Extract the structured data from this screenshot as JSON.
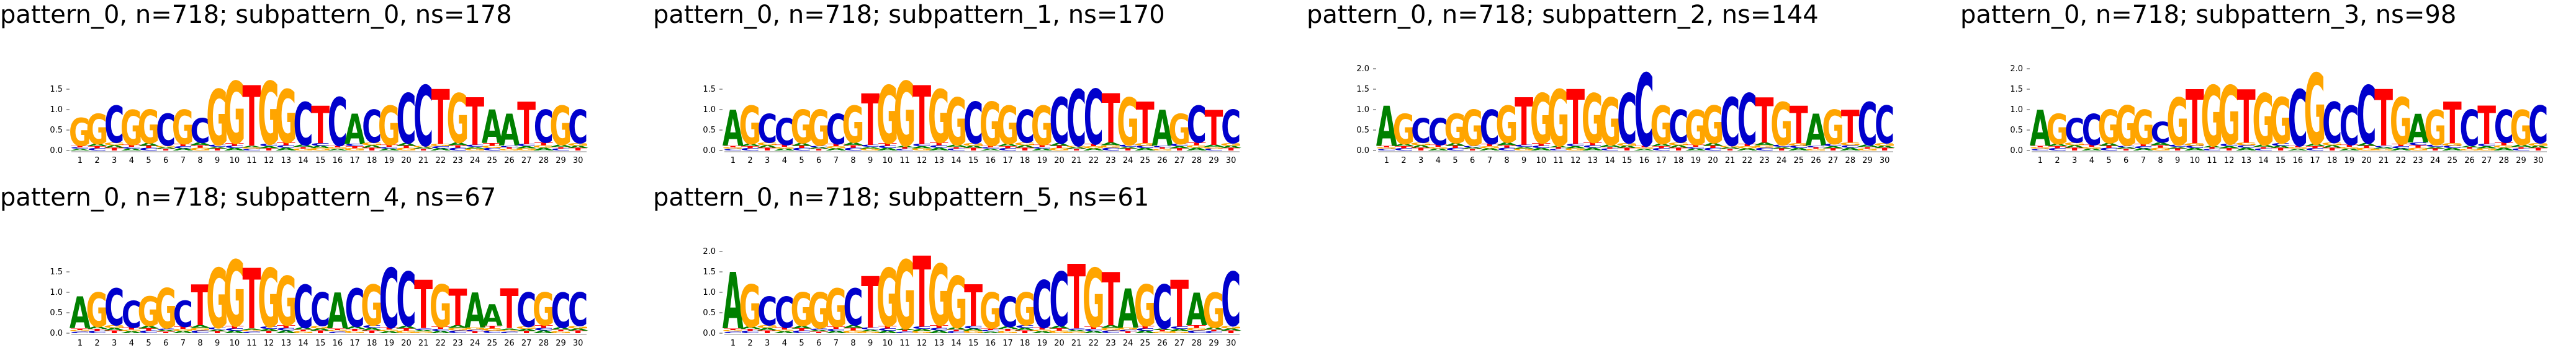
{
  "colors": {
    "A": "#008000",
    "C": "#0000CC",
    "G": "#FFA500",
    "T": "#FF0000"
  },
  "chart_data": [
    {
      "type": "sequence-logo",
      "title": "pattern_0, n=718; subpattern_0, ns=178",
      "ylim": [
        0,
        2
      ],
      "yticks": [
        "0.0",
        "0.5",
        "1.0",
        "1.5"
      ],
      "positions": [
        "1",
        "2",
        "3",
        "4",
        "5",
        "6",
        "7",
        "8",
        "9",
        "10",
        "11",
        "12",
        "13",
        "14",
        "15",
        "16",
        "17",
        "18",
        "19",
        "20",
        "21",
        "22",
        "23",
        "24",
        "25",
        "26",
        "27",
        "28",
        "29",
        "30"
      ],
      "tops": [
        "G",
        "G",
        "C",
        "G",
        "G",
        "C",
        "G",
        "C",
        "G",
        "G",
        "T",
        "G",
        "G",
        "C",
        "T",
        "C",
        "A",
        "C",
        "G",
        "C",
        "C",
        "T",
        "G",
        "T",
        "A",
        "A",
        "T",
        "C",
        "G",
        "C"
      ],
      "heights": [
        0.8,
        0.9,
        1.1,
        1.0,
        1.0,
        0.9,
        1.0,
        0.8,
        1.5,
        1.7,
        1.6,
        1.7,
        1.5,
        1.2,
        1.1,
        1.3,
        0.9,
        1.0,
        1.1,
        1.4,
        1.6,
        1.5,
        1.4,
        1.3,
        1.0,
        0.9,
        1.2,
        1.0,
        1.1,
        1.0
      ]
    },
    {
      "type": "sequence-logo",
      "title": "pattern_0, n=718; subpattern_1, ns=170",
      "ylim": [
        0,
        2
      ],
      "yticks": [
        "0.0",
        "0.5",
        "1.0",
        "1.5"
      ],
      "positions": [
        "1",
        "2",
        "3",
        "4",
        "5",
        "6",
        "7",
        "8",
        "9",
        "10",
        "11",
        "12",
        "13",
        "14",
        "15",
        "16",
        "17",
        "18",
        "19",
        "20",
        "21",
        "22",
        "23",
        "24",
        "25",
        "26",
        "27",
        "28",
        "29",
        "30"
      ],
      "tops": [
        "A",
        "G",
        "C",
        "C",
        "G",
        "G",
        "C",
        "G",
        "T",
        "G",
        "G",
        "T",
        "G",
        "G",
        "C",
        "G",
        "G",
        "C",
        "G",
        "C",
        "C",
        "C",
        "T",
        "G",
        "T",
        "A",
        "G",
        "C",
        "T",
        "C"
      ],
      "heights": [
        1.0,
        1.1,
        0.9,
        0.8,
        1.0,
        1.0,
        0.9,
        1.1,
        1.4,
        1.6,
        1.7,
        1.6,
        1.5,
        1.3,
        1.2,
        1.2,
        1.1,
        1.0,
        1.1,
        1.3,
        1.5,
        1.5,
        1.4,
        1.3,
        1.2,
        1.0,
        0.9,
        1.1,
        1.0,
        1.0
      ]
    },
    {
      "type": "sequence-logo",
      "title": "pattern_0, n=718; subpattern_2, ns=144",
      "ylim": [
        0,
        2
      ],
      "yticks": [
        "0.0",
        "0.5",
        "1.0",
        "1.5",
        "2.0"
      ],
      "positions": [
        "1",
        "2",
        "3",
        "4",
        "5",
        "6",
        "7",
        "8",
        "9",
        "10",
        "11",
        "12",
        "13",
        "14",
        "15",
        "16",
        "17",
        "18",
        "19",
        "20",
        "21",
        "22",
        "23",
        "24",
        "25",
        "26",
        "27",
        "28",
        "29",
        "30"
      ],
      "tops": [
        "A",
        "G",
        "C",
        "C",
        "G",
        "G",
        "C",
        "G",
        "T",
        "G",
        "G",
        "T",
        "G",
        "G",
        "C",
        "C",
        "G",
        "C",
        "G",
        "G",
        "C",
        "C",
        "T",
        "G",
        "T",
        "A",
        "G",
        "T",
        "C",
        "C"
      ],
      "heights": [
        1.1,
        0.9,
        0.8,
        0.8,
        0.9,
        1.0,
        1.0,
        1.1,
        1.3,
        1.4,
        1.5,
        1.5,
        1.4,
        1.3,
        1.4,
        1.9,
        1.1,
        1.0,
        1.0,
        1.1,
        1.3,
        1.4,
        1.3,
        1.2,
        1.1,
        0.9,
        1.0,
        1.0,
        1.2,
        1.1
      ]
    },
    {
      "type": "sequence-logo",
      "title": "pattern_0, n=718; subpattern_3, ns=98",
      "ylim": [
        0,
        2
      ],
      "yticks": [
        "0.0",
        "0.5",
        "1.0",
        "1.5",
        "2.0"
      ],
      "positions": [
        "1",
        "2",
        "3",
        "4",
        "5",
        "6",
        "7",
        "8",
        "9",
        "10",
        "11",
        "12",
        "13",
        "14",
        "15",
        "16",
        "17",
        "18",
        "19",
        "20",
        "21",
        "22",
        "23",
        "24",
        "25",
        "26",
        "27",
        "28",
        "29",
        "30"
      ],
      "tops": [
        "A",
        "G",
        "C",
        "C",
        "G",
        "G",
        "G",
        "C",
        "G",
        "T",
        "G",
        "G",
        "T",
        "G",
        "G",
        "C",
        "G",
        "C",
        "C",
        "C",
        "T",
        "G",
        "A",
        "G",
        "T",
        "C",
        "T",
        "C",
        "G",
        "C"
      ],
      "heights": [
        1.0,
        0.9,
        0.8,
        0.9,
        1.0,
        1.1,
        1.0,
        0.7,
        1.3,
        1.5,
        1.6,
        1.6,
        1.5,
        1.4,
        1.3,
        1.5,
        1.9,
        1.2,
        1.1,
        1.6,
        1.5,
        1.3,
        0.9,
        1.0,
        1.2,
        1.0,
        1.1,
        1.0,
        1.0,
        1.1
      ]
    },
    {
      "type": "sequence-logo",
      "title": "pattern_0, n=718; subpattern_4, ns=67",
      "ylim": [
        0,
        2
      ],
      "yticks": [
        "0.0",
        "0.5",
        "1.0",
        "1.5"
      ],
      "positions": [
        "1",
        "2",
        "3",
        "4",
        "5",
        "6",
        "7",
        "8",
        "9",
        "10",
        "11",
        "12",
        "13",
        "14",
        "15",
        "16",
        "17",
        "18",
        "19",
        "20",
        "21",
        "22",
        "23",
        "24",
        "25",
        "26",
        "27",
        "28",
        "29",
        "30"
      ],
      "tops": [
        "A",
        "G",
        "C",
        "C",
        "G",
        "G",
        "C",
        "T",
        "G",
        "G",
        "T",
        "G",
        "G",
        "C",
        "C",
        "A",
        "C",
        "G",
        "C",
        "C",
        "T",
        "G",
        "T",
        "A",
        "A",
        "T",
        "C",
        "G",
        "C",
        "C"
      ],
      "heights": [
        0.9,
        1.0,
        1.1,
        0.8,
        0.9,
        1.1,
        0.8,
        1.2,
        1.6,
        1.8,
        1.6,
        1.6,
        1.4,
        1.2,
        1.0,
        1.0,
        1.1,
        1.2,
        1.6,
        1.5,
        1.3,
        1.2,
        1.1,
        1.0,
        0.7,
        1.1,
        1.0,
        1.0,
        1.0,
        1.0
      ]
    },
    {
      "type": "sequence-logo",
      "title": "pattern_0, n=718; subpattern_5, ns=61",
      "ylim": [
        0,
        2
      ],
      "yticks": [
        "0.0",
        "0.5",
        "1.0",
        "1.5",
        "2.0"
      ],
      "positions": [
        "1",
        "2",
        "3",
        "4",
        "5",
        "6",
        "7",
        "8",
        "9",
        "10",
        "11",
        "12",
        "13",
        "14",
        "15",
        "16",
        "17",
        "18",
        "19",
        "20",
        "21",
        "22",
        "23",
        "24",
        "25",
        "26",
        "27",
        "28",
        "29",
        "30"
      ],
      "tops": [
        "A",
        "G",
        "C",
        "C",
        "G",
        "G",
        "G",
        "C",
        "T",
        "G",
        "G",
        "T",
        "G",
        "G",
        "T",
        "G",
        "C",
        "G",
        "C",
        "C",
        "T",
        "G",
        "T",
        "A",
        "G",
        "C",
        "T",
        "A",
        "G",
        "C"
      ],
      "heights": [
        1.5,
        1.2,
        0.9,
        0.9,
        1.0,
        1.0,
        1.1,
        1.1,
        1.4,
        1.6,
        1.8,
        1.9,
        1.7,
        1.4,
        1.2,
        1.0,
        0.9,
        1.0,
        1.3,
        1.5,
        1.7,
        1.6,
        1.5,
        1.1,
        1.2,
        1.2,
        1.3,
        1.0,
        1.0,
        1.5
      ]
    }
  ]
}
